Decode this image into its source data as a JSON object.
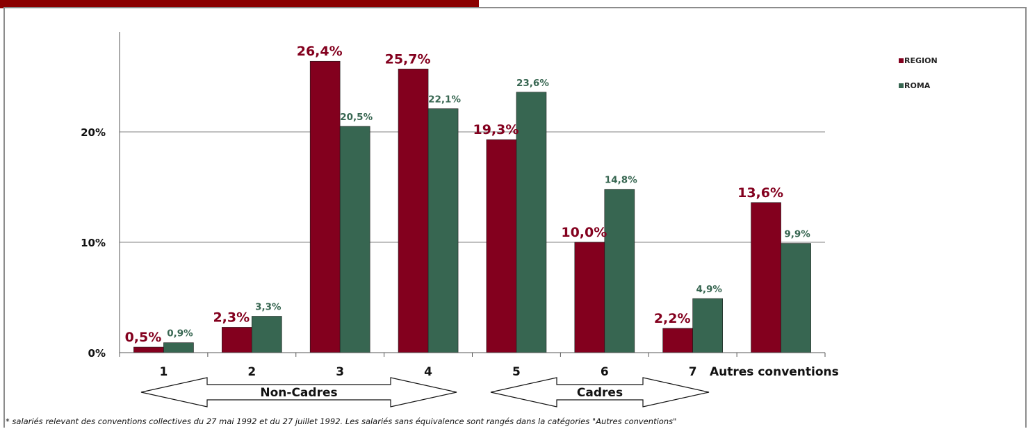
{
  "colors": {
    "region": "#83001e",
    "roma": "#376651",
    "grid": "#808080",
    "banner": "#8b0000"
  },
  "chart_data": {
    "type": "bar",
    "categories": [
      "1",
      "2",
      "3",
      "4",
      "5",
      "6",
      "7",
      "Autres conventions"
    ],
    "series": [
      {
        "name": "REGION",
        "values": [
          0.5,
          2.3,
          26.4,
          25.7,
          19.3,
          10.0,
          2.2,
          13.6
        ],
        "labels": [
          "0,5%",
          "2,3%",
          "26,4%",
          "25,7%",
          "19,3%",
          "10,0%",
          "2,2%",
          "13,6%"
        ]
      },
      {
        "name": "ROMA",
        "values": [
          0.9,
          3.3,
          20.5,
          22.1,
          23.6,
          14.8,
          4.9,
          9.9
        ],
        "labels": [
          "0,9%",
          "3,3%",
          "20,5%",
          "22,1%",
          "23,6%",
          "14,8%",
          "4,9%",
          "9,9%"
        ]
      }
    ],
    "yticks": [
      {
        "value": 0,
        "label": "0%"
      },
      {
        "value": 10,
        "label": "10%"
      },
      {
        "value": 20,
        "label": "20%"
      }
    ],
    "ylim": [
      0,
      30
    ],
    "grid": true,
    "legend_position": "right",
    "annotations": [
      {
        "label": "Non-Cadres",
        "from_category": "1",
        "to_category": "4"
      },
      {
        "label": "Cadres",
        "from_category": "5",
        "to_category": "7"
      }
    ]
  },
  "footnote": "* salariés relevant des conventions collectives du 27 mai 1992 et du 27 juillet 1992. Les salariés sans équivalence sont rangés dans la catégories \"Autres conventions\""
}
